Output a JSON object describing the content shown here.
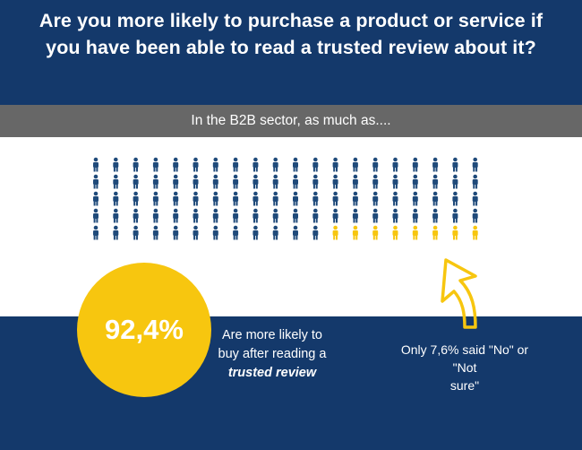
{
  "header": {
    "title_line1": "Are you more likely to purchase a product or service if",
    "title_line2": "you have been able to read a trusted review about it?"
  },
  "subtitle": "In the B2B sector, as much as....",
  "pictogram": {
    "columns": 20,
    "rows": 5,
    "highlighted_count": 8,
    "base_color": "#1f4a7a",
    "highlight_color": "#f7c60f"
  },
  "stat": {
    "percent": "92,4%",
    "caption_line1": "Are more likely to",
    "caption_line2": "buy after reading a",
    "caption_emphasis": "trusted review",
    "circle_color": "#f7c60f"
  },
  "note": {
    "line1": "Only 7,6% said \"No\" or \"Not",
    "line2": "sure\"",
    "arrow_color": "#f7c60f"
  },
  "colors": {
    "background": "#14396b",
    "subtitle_bar": "#676767"
  }
}
